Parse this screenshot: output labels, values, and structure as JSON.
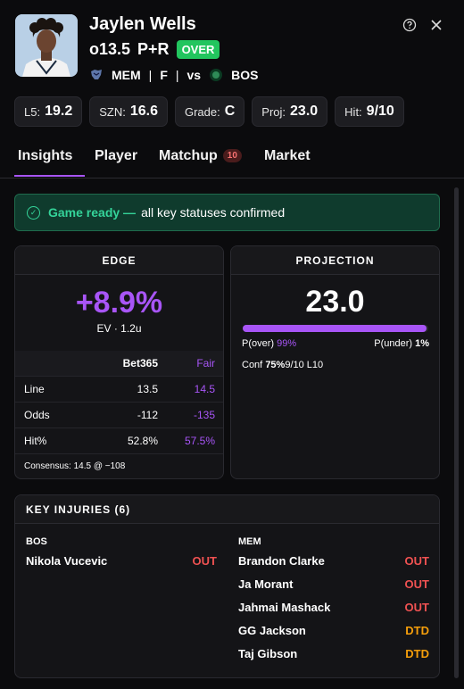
{
  "player": {
    "name": "Jaylen Wells",
    "line": "o13.5",
    "prop": "P+R",
    "pick": "OVER",
    "team": "MEM",
    "position": "F",
    "vs_label": "vs",
    "opponent": "BOS"
  },
  "stats": [
    {
      "label": "L5:",
      "value": "19.2"
    },
    {
      "label": "SZN:",
      "value": "16.6"
    },
    {
      "label": "Grade:",
      "value": "C"
    },
    {
      "label": "Proj:",
      "value": "23.0"
    },
    {
      "label": "Hit:",
      "value": "9/10"
    }
  ],
  "tabs": [
    {
      "label": "Insights",
      "active": true
    },
    {
      "label": "Player"
    },
    {
      "label": "Matchup",
      "badge": "10"
    },
    {
      "label": "Market"
    }
  ],
  "banner": {
    "ready": "Game ready —",
    "text": "all key statuses confirmed"
  },
  "edge": {
    "title": "EDGE",
    "value": "+8.9%",
    "sub": "EV · 1.2u",
    "cols": [
      "",
      "Bet365",
      "Fair"
    ],
    "rows": [
      {
        "label": "Line",
        "book": "13.5",
        "fair": "14.5"
      },
      {
        "label": "Odds",
        "book": "-112",
        "fair": "-135"
      },
      {
        "label": "Hit%",
        "book": "52.8%",
        "fair": "57.5%"
      }
    ],
    "consensus": "Consensus: 14.5 @ −108"
  },
  "projection": {
    "title": "PROJECTION",
    "value": "23.0",
    "p_over_fraction": 0.99,
    "p_over_label": "P(over)",
    "p_over": "99%",
    "p_under_label": "P(under)",
    "p_under": "1%",
    "conf_label": "Conf",
    "conf_value": "75%",
    "conf_extra": "9/10 L10"
  },
  "injuries": {
    "title": "KEY INJURIES (6)",
    "teams": [
      {
        "team": "BOS",
        "players": [
          {
            "name": "Nikola Vucevic",
            "status": "OUT"
          }
        ]
      },
      {
        "team": "MEM",
        "players": [
          {
            "name": "Brandon Clarke",
            "status": "OUT"
          },
          {
            "name": "Ja Morant",
            "status": "OUT"
          },
          {
            "name": "Jahmai Mashack",
            "status": "OUT"
          },
          {
            "name": "GG Jackson",
            "status": "DTD"
          },
          {
            "name": "Taj Gibson",
            "status": "DTD"
          }
        ]
      }
    ]
  },
  "colors": {
    "accent": "#a855f7",
    "over": "#22c55e",
    "out": "#f05252",
    "dtd": "#f59e0b",
    "ready": "#34d399"
  }
}
